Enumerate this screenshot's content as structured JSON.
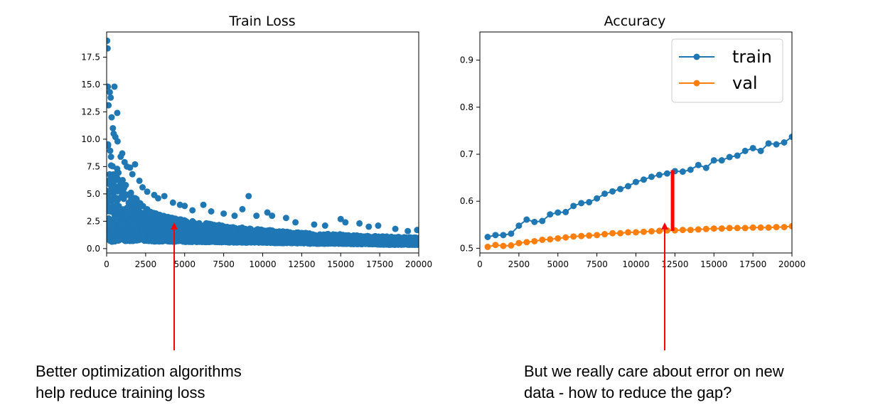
{
  "colors": {
    "train": "#1f77b4",
    "val": "#ff7f0e",
    "arrow": "#ff0000"
  },
  "chart_data": [
    {
      "type": "scatter",
      "title": "Train Loss",
      "xlim": [
        0,
        20000
      ],
      "ylim": [
        -0.4,
        19.8
      ],
      "xticks": [
        0,
        2500,
        5000,
        7500,
        10000,
        12500,
        15000,
        17500,
        20000
      ],
      "xtick_labels": [
        "0",
        "2500",
        "5000",
        "7500",
        "10000",
        "12500",
        "15000",
        "17500",
        "20000"
      ],
      "yticks": [
        0,
        2.5,
        5,
        7.5,
        10,
        12.5,
        15,
        17.5
      ],
      "ytick_labels": [
        "0.0",
        "2.5",
        "5.0",
        "7.5",
        "10.0",
        "12.5",
        "15.0",
        "17.5"
      ],
      "series": [
        {
          "color": "#1f77b4",
          "band": {
            "x": [
              0,
              200,
              500,
              1000,
              1500,
              2000,
              2500,
              3000,
              4000,
              5000,
              6000,
              7000,
              8000,
              9000,
              10000,
              11000,
              12000,
              13000,
              14000,
              15000,
              16000,
              17000,
              18000,
              19000,
              20000
            ],
            "low": [
              0.6,
              0.6,
              0.65,
              0.7,
              0.7,
              0.7,
              0.7,
              0.65,
              0.65,
              0.6,
              0.6,
              0.6,
              0.55,
              0.55,
              0.55,
              0.5,
              0.5,
              0.45,
              0.45,
              0.45,
              0.4,
              0.4,
              0.35,
              0.35,
              0.35
            ],
            "high": [
              10.5,
              9.6,
              8.0,
              6.6,
              5.4,
              4.4,
              3.8,
              3.3,
              2.9,
              2.6,
              2.4,
              2.2,
              2.0,
              1.9,
              1.75,
              1.6,
              1.5,
              1.4,
              1.35,
              1.3,
              1.2,
              1.15,
              1.1,
              1.05,
              1.0
            ]
          },
          "outliers": [
            [
              30,
              19.0
            ],
            [
              60,
              18.3
            ],
            [
              80,
              14.8
            ],
            [
              200,
              14.3
            ],
            [
              260,
              13.8
            ],
            [
              120,
              13.1
            ],
            [
              500,
              14.8
            ],
            [
              680,
              12.4
            ],
            [
              320,
              12.0
            ],
            [
              400,
              11.0
            ],
            [
              450,
              10.5
            ],
            [
              560,
              10.2
            ],
            [
              700,
              9.8
            ],
            [
              900,
              8.4
            ],
            [
              1000,
              8.7
            ],
            [
              1150,
              7.9
            ],
            [
              1300,
              7.5
            ],
            [
              1500,
              7.4
            ],
            [
              1820,
              7.7
            ],
            [
              1650,
              6.8
            ],
            [
              2100,
              6.2
            ],
            [
              2300,
              5.6
            ],
            [
              2600,
              5.2
            ],
            [
              3050,
              4.9
            ],
            [
              3300,
              4.6
            ],
            [
              3700,
              4.8
            ],
            [
              4250,
              4.2
            ],
            [
              4700,
              4.0
            ],
            [
              5000,
              3.9
            ],
            [
              5500,
              3.5
            ],
            [
              6200,
              4.0
            ],
            [
              6700,
              3.4
            ],
            [
              7500,
              3.2
            ],
            [
              8200,
              3.0
            ],
            [
              8700,
              3.6
            ],
            [
              9100,
              4.8
            ],
            [
              9600,
              3.0
            ],
            [
              10300,
              3.3
            ],
            [
              10600,
              3.0
            ],
            [
              11500,
              2.8
            ],
            [
              12100,
              2.4
            ],
            [
              13300,
              2.2
            ],
            [
              14000,
              2.1
            ],
            [
              15000,
              2.7
            ],
            [
              15300,
              2.4
            ],
            [
              16200,
              2.3
            ],
            [
              16800,
              2.0
            ],
            [
              17400,
              2.1
            ],
            [
              18500,
              1.8
            ],
            [
              19300,
              1.6
            ],
            [
              19900,
              1.7
            ]
          ]
        }
      ]
    },
    {
      "type": "line",
      "title": "Accuracy",
      "xlim": [
        0,
        20000
      ],
      "ylim": [
        0.49,
        0.96
      ],
      "xticks": [
        0,
        2500,
        5000,
        7500,
        10000,
        12500,
        15000,
        17500,
        20000
      ],
      "xtick_labels": [
        "0",
        "2500",
        "5000",
        "7500",
        "10000",
        "12500",
        "15000",
        "17500",
        "20000"
      ],
      "yticks": [
        0.5,
        0.6,
        0.7,
        0.8,
        0.9
      ],
      "ytick_labels": [
        "0.5",
        "0.6",
        "0.7",
        "0.8",
        "0.9"
      ],
      "legend": "top-right",
      "x": [
        500,
        1000,
        1500,
        2000,
        2500,
        3000,
        3500,
        4000,
        4500,
        5000,
        5500,
        6000,
        6500,
        7000,
        7500,
        8000,
        8500,
        9000,
        9500,
        10000,
        10500,
        11000,
        11500,
        12000,
        12500,
        13000,
        13500,
        14000,
        14500,
        15000,
        15500,
        16000,
        16500,
        17000,
        17500,
        18000,
        18500,
        19000,
        19500,
        20000
      ],
      "series": [
        {
          "name": "train",
          "color": "#1f77b4",
          "values": [
            0.524,
            0.528,
            0.528,
            0.531,
            0.548,
            0.561,
            0.556,
            0.558,
            0.572,
            0.576,
            0.577,
            0.59,
            0.596,
            0.598,
            0.606,
            0.616,
            0.621,
            0.626,
            0.632,
            0.641,
            0.646,
            0.652,
            0.656,
            0.659,
            0.664,
            0.663,
            0.667,
            0.677,
            0.671,
            0.687,
            0.687,
            0.694,
            0.697,
            0.707,
            0.713,
            0.707,
            0.723,
            0.721,
            0.725,
            0.737
          ]
        },
        {
          "name": "val",
          "color": "#ff7f0e",
          "values": [
            0.503,
            0.507,
            0.505,
            0.506,
            0.511,
            0.513,
            0.515,
            0.518,
            0.519,
            0.521,
            0.523,
            0.525,
            0.526,
            0.527,
            0.528,
            0.53,
            0.532,
            0.532,
            0.534,
            0.534,
            0.535,
            0.536,
            0.537,
            0.538,
            0.538,
            0.539,
            0.539,
            0.54,
            0.541,
            0.542,
            0.542,
            0.543,
            0.543,
            0.543,
            0.544,
            0.544,
            0.544,
            0.545,
            0.545,
            0.547
          ]
        }
      ],
      "gap_marker": {
        "x": 12350,
        "y_low": 0.537,
        "y_high": 0.666
      }
    }
  ],
  "captions": {
    "left": [
      "Better optimization algorithms",
      "help reduce training loss"
    ],
    "right": [
      "But we really care about error on new",
      "data - how to reduce the gap?"
    ]
  }
}
